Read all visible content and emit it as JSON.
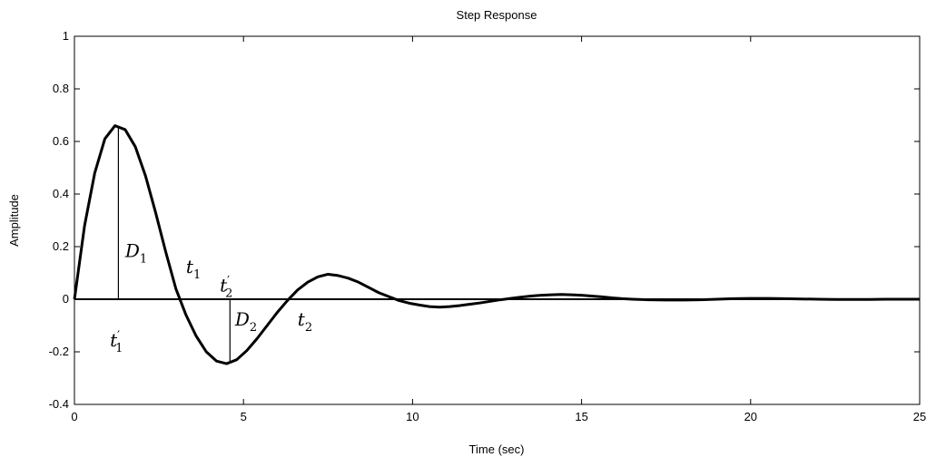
{
  "chart_data": {
    "type": "line",
    "title": "Step Response",
    "xlabel": "Time (sec)",
    "ylabel": "Amplitude",
    "xlim": [
      0,
      25
    ],
    "ylim": [
      -0.4,
      1
    ],
    "grid": false,
    "x_ticks": [
      0,
      5,
      10,
      15,
      20,
      25
    ],
    "x_tick_labels": [
      "0",
      "5",
      "10",
      "15",
      "20",
      "25"
    ],
    "y_ticks": [
      -0.4,
      -0.2,
      0,
      0.2,
      0.4,
      0.6,
      0.8,
      1
    ],
    "y_tick_labels": [
      "-0.4",
      "-0.2",
      "0",
      "0.2",
      "0.4",
      "0.6",
      "0.8",
      "1"
    ],
    "series": [
      {
        "x": [
          0,
          0.3,
          0.6,
          0.9,
          1.2,
          1.5,
          1.8,
          2.1,
          2.4,
          2.7,
          3.0,
          3.3,
          3.6,
          3.9,
          4.2,
          4.5,
          4.8,
          5.1,
          5.4,
          5.7,
          6.0,
          6.3,
          6.6,
          6.9,
          7.2,
          7.5,
          7.8,
          8.1,
          8.4,
          8.7,
          9.0,
          9.3,
          9.6,
          9.9,
          10.2,
          10.5,
          10.8,
          11.1,
          11.4,
          11.7,
          12.0,
          12.3,
          12.6,
          12.9,
          13.2,
          13.5,
          13.8,
          14.1,
          14.4,
          14.7,
          15.0,
          15.3,
          15.6,
          15.9,
          16.2,
          16.5,
          17.0,
          17.5,
          18.0,
          18.5,
          19.0,
          19.5,
          20.0,
          20.5,
          21.0,
          21.5,
          22.0,
          22.5,
          23.0,
          23.5,
          24.0,
          24.5,
          25.0
        ],
        "y": [
          0,
          0.28,
          0.48,
          0.61,
          0.66,
          0.645,
          0.58,
          0.47,
          0.33,
          0.18,
          0.04,
          -0.06,
          -0.14,
          -0.2,
          -0.235,
          -0.245,
          -0.23,
          -0.195,
          -0.15,
          -0.1,
          -0.05,
          -0.005,
          0.035,
          0.065,
          0.085,
          0.095,
          0.09,
          0.08,
          0.065,
          0.045,
          0.025,
          0.01,
          -0.005,
          -0.015,
          -0.022,
          -0.028,
          -0.03,
          -0.028,
          -0.024,
          -0.019,
          -0.014,
          -0.008,
          -0.002,
          0.003,
          0.008,
          0.012,
          0.015,
          0.017,
          0.018,
          0.017,
          0.015,
          0.012,
          0.009,
          0.005,
          0.002,
          0,
          -0.002,
          -0.003,
          -0.003,
          -0.002,
          0,
          0.002,
          0.003,
          0.003,
          0.002,
          0.001,
          0,
          -0.001,
          -0.001,
          -0.001,
          0,
          0,
          0
        ]
      }
    ],
    "reference_lines": [
      {
        "orientation": "horizontal",
        "y": 0
      }
    ],
    "markers": [
      {
        "x": 1.3,
        "y_from": 0,
        "y_to": 0.66
      },
      {
        "x": 4.6,
        "y_from": 0,
        "y_to": -0.245
      }
    ],
    "annotations": [
      {
        "base": "D",
        "sub": "1",
        "prime": "",
        "x": 1.5,
        "y": 0.16
      },
      {
        "base": "t",
        "sub": "1",
        "prime": "",
        "x": 3.3,
        "y": 0.1
      },
      {
        "base": "t",
        "sub": "2",
        "prime": "′",
        "x": 4.3,
        "y": 0.03
      },
      {
        "base": "D",
        "sub": "2",
        "prime": "",
        "x": 4.75,
        "y": -0.1
      },
      {
        "base": "t",
        "sub": "2",
        "prime": "",
        "x": 6.6,
        "y": -0.1
      },
      {
        "base": "t",
        "sub": "1",
        "prime": "′",
        "x": 1.05,
        "y": -0.18
      }
    ]
  }
}
